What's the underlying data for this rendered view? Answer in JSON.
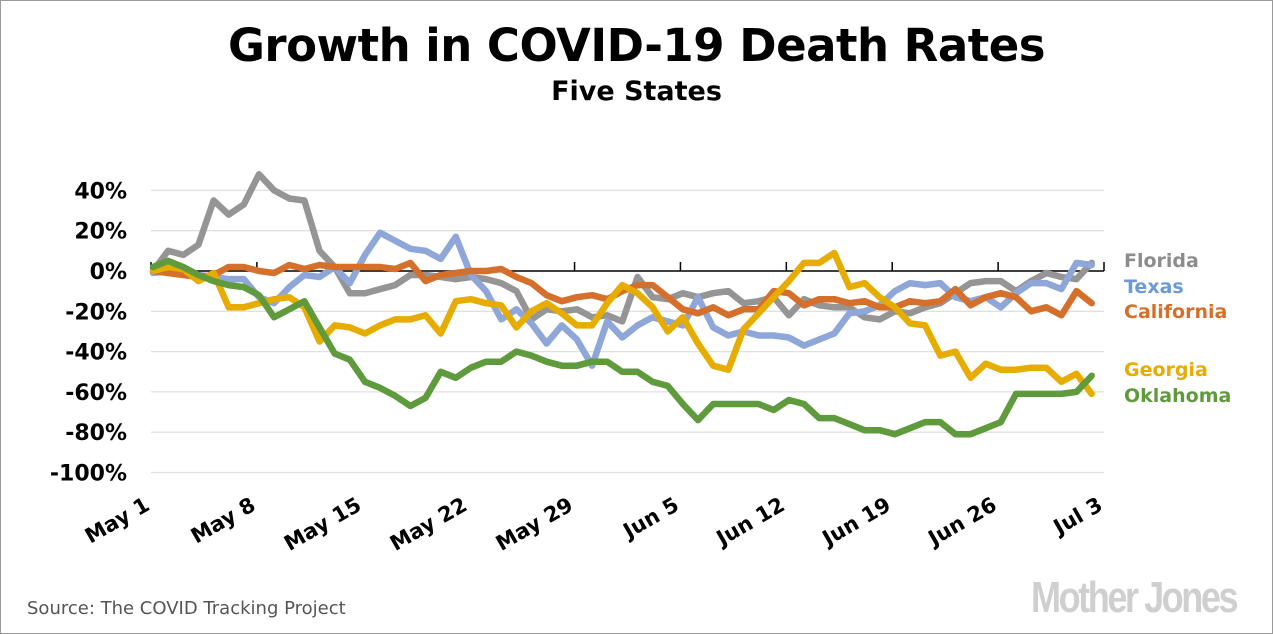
{
  "chart_data": {
    "type": "line",
    "title": "Growth in COVID-19 Death Rates",
    "subtitle": "Five States",
    "xlabel": "",
    "ylabel": "",
    "x_tick_labels": [
      "May 1",
      "May 8",
      "May 15",
      "May 22",
      "May 29",
      "Jun 5",
      "Jun 12",
      "Jun 19",
      "Jun 26",
      "Jul 3"
    ],
    "x_range": [
      "May 1",
      "Jul 2"
    ],
    "ylim": [
      -100,
      40
    ],
    "y_ticks": [
      40,
      20,
      0,
      -20,
      -40,
      -60,
      -80,
      -100
    ],
    "y_tick_labels": [
      "40%",
      "20%",
      "0%",
      "-20%",
      "-40%",
      "-60%",
      "-80%",
      "-100%"
    ],
    "grid": true,
    "legend_placement": "right",
    "series": [
      {
        "name": "Florida",
        "color": "#959595",
        "label_color": "#8c8c8c",
        "values": [
          0,
          10,
          8,
          13,
          35,
          28,
          33,
          48,
          40,
          36,
          35,
          10,
          2,
          -11,
          -11,
          -9,
          -7,
          -2,
          -2,
          -3,
          -4,
          -3,
          -4,
          -6,
          -10,
          -24,
          -19,
          -20,
          -19,
          -23,
          -22,
          -25,
          -3,
          -13,
          -14,
          -11,
          -13,
          -11,
          -10,
          -16,
          -15,
          -13,
          -22,
          -14,
          -17,
          -18,
          -18,
          -23,
          -24,
          -20,
          -21,
          -18,
          -16,
          -11,
          -6,
          -5,
          -5,
          -10,
          -5,
          -1,
          -3,
          -4,
          4
        ]
      },
      {
        "name": "Texas",
        "color": "#8fa6d9",
        "label_color": "#6c9ad6",
        "values": [
          -1,
          0,
          -2,
          -2,
          -3,
          -4,
          -4,
          -13,
          -16,
          -8,
          -2,
          -3,
          2,
          -6,
          8,
          19,
          15,
          11,
          10,
          6,
          17,
          -2,
          -10,
          -24,
          -19,
          -26,
          -36,
          -27,
          -34,
          -47,
          -25,
          -33,
          -27,
          -23,
          -25,
          -27,
          -13,
          -28,
          -32,
          -30,
          -32,
          -32,
          -33,
          -37,
          -34,
          -31,
          -21,
          -20,
          -17,
          -10,
          -6,
          -7,
          -6,
          -13,
          -15,
          -13,
          -18,
          -11,
          -6,
          -6,
          -9,
          4,
          3
        ]
      },
      {
        "name": "California",
        "color": "#d4702c",
        "label_color": "#d4702c",
        "values": [
          0,
          -1,
          -2,
          -3,
          -2,
          2,
          2,
          0,
          -1,
          3,
          1,
          3,
          2,
          2,
          2,
          2,
          1,
          4,
          -5,
          -2,
          -1,
          0,
          0,
          1,
          -3,
          -6,
          -12,
          -15,
          -13,
          -12,
          -14,
          -10,
          -7,
          -7,
          -13,
          -19,
          -21,
          -18,
          -22,
          -19,
          -19,
          -10,
          -11,
          -17,
          -14,
          -14,
          -16,
          -15,
          -18,
          -18,
          -15,
          -16,
          -15,
          -9,
          -17,
          -13,
          -11,
          -13,
          -20,
          -18,
          -22,
          -10,
          -16
        ]
      },
      {
        "name": "Georgia",
        "color": "#e6ac00",
        "label_color": "#e6ac00",
        "values": [
          0,
          2,
          1,
          -5,
          -1,
          -18,
          -18,
          -16,
          -14,
          -13,
          -18,
          -35,
          -27,
          -28,
          -31,
          -27,
          -24,
          -24,
          -22,
          -31,
          -15,
          -14,
          -16,
          -17,
          -28,
          -20,
          -16,
          -21,
          -27,
          -27,
          -16,
          -7,
          -11,
          -18,
          -30,
          -23,
          -36,
          -47,
          -49,
          -29,
          -21,
          -13,
          -5,
          4,
          4,
          9,
          -8,
          -6,
          -13,
          -18,
          -26,
          -27,
          -42,
          -40,
          -53,
          -46,
          -49,
          -49,
          -48,
          -48,
          -55,
          -51,
          -61
        ]
      },
      {
        "name": "Oklahoma",
        "color": "#5f9a3c",
        "label_color": "#5f9a3c",
        "values": [
          2,
          5,
          2,
          -2,
          -5,
          -7,
          -8,
          -12,
          -23,
          -19,
          -15,
          -28,
          -41,
          -44,
          -55,
          -58,
          -62,
          -67,
          -63,
          -50,
          -53,
          -48,
          -45,
          -45,
          -40,
          -42,
          -45,
          -47,
          -47,
          -45,
          -45,
          -50,
          -50,
          -55,
          -57,
          -66,
          -74,
          -66,
          -66,
          -66,
          -66,
          -69,
          -64,
          -66,
          -73,
          -73,
          -76,
          -79,
          -79,
          -81,
          -78,
          -75,
          -75,
          -81,
          -81,
          -78,
          -75,
          -61,
          -61,
          -61,
          -61,
          -60,
          -52
        ]
      }
    ]
  },
  "footer": {
    "source": "Source: The COVID Tracking Project",
    "logo": "Mother Jones"
  }
}
